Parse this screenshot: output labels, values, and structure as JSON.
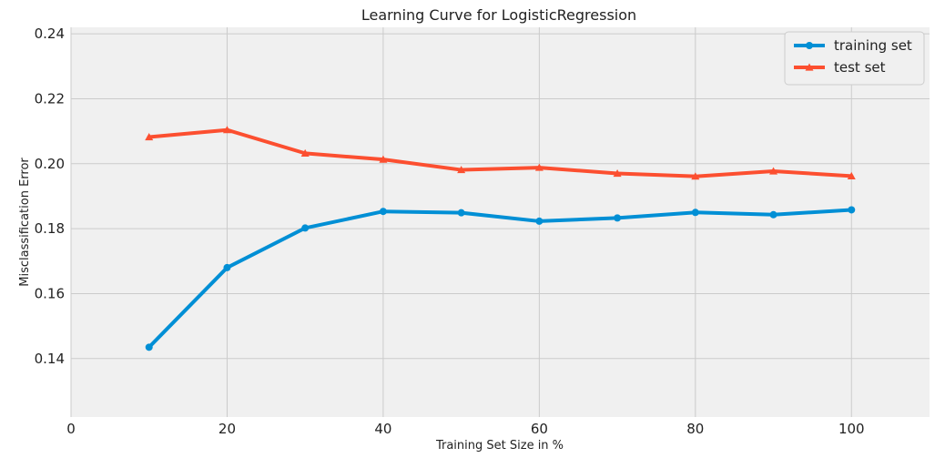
{
  "chart_data": {
    "type": "line",
    "title": "Learning Curve for LogisticRegression",
    "xlabel": "Training Set Size in %",
    "ylabel": "Misclassification Error",
    "xlim": [
      0,
      110
    ],
    "ylim": [
      0.122,
      0.242
    ],
    "x_ticks": [
      0,
      20,
      40,
      60,
      80,
      100
    ],
    "y_ticks": [
      0.14,
      0.16,
      0.18,
      0.2,
      0.22,
      0.24
    ],
    "y_tick_labels": [
      "0.14",
      "0.16",
      "0.18",
      "0.20",
      "0.22",
      "0.24"
    ],
    "grid": true,
    "background": "#f0f0f0",
    "legend_position": "top-right",
    "x": [
      10,
      20,
      30,
      40,
      50,
      60,
      70,
      80,
      90,
      100
    ],
    "series": [
      {
        "name": "training set",
        "color": "#008fd5",
        "marker": "circle",
        "values": [
          0.1435,
          0.168,
          0.1802,
          0.1853,
          0.1849,
          0.1823,
          0.1833,
          0.185,
          0.1843,
          0.1858
        ]
      },
      {
        "name": "test set",
        "color": "#fc4f30",
        "marker": "triangle",
        "values": [
          0.2082,
          0.2104,
          0.2032,
          0.2013,
          0.1981,
          0.1988,
          0.197,
          0.1961,
          0.1977,
          0.1962
        ]
      }
    ]
  }
}
